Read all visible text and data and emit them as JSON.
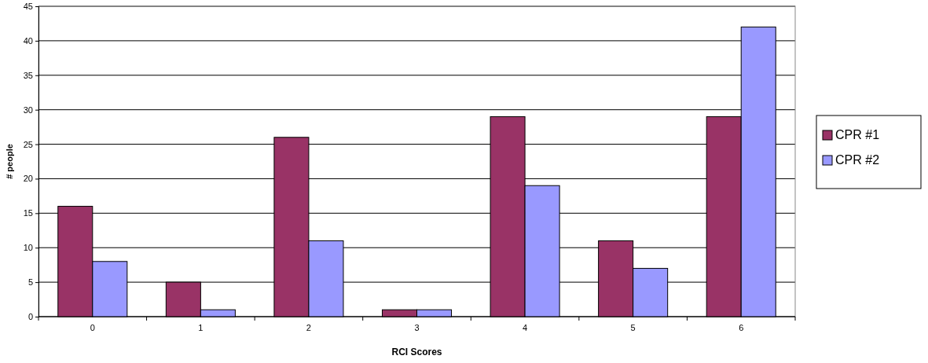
{
  "chart_data": {
    "type": "bar",
    "xlabel": "RCI Scores",
    "ylabel": "# people",
    "categories": [
      "0",
      "1",
      "2",
      "3",
      "4",
      "5",
      "6"
    ],
    "series": [
      {
        "name": "CPR #1",
        "color": "#993366",
        "values": [
          16,
          5,
          26,
          1,
          29,
          11,
          29
        ]
      },
      {
        "name": "CPR #2",
        "color": "#9999ff",
        "values": [
          8,
          1,
          11,
          1,
          19,
          7,
          42
        ]
      }
    ],
    "ylim": [
      0,
      45
    ],
    "yticks": [
      0,
      5,
      10,
      15,
      20,
      25,
      30,
      35,
      40,
      45
    ],
    "grid": "y",
    "legend": "right"
  }
}
